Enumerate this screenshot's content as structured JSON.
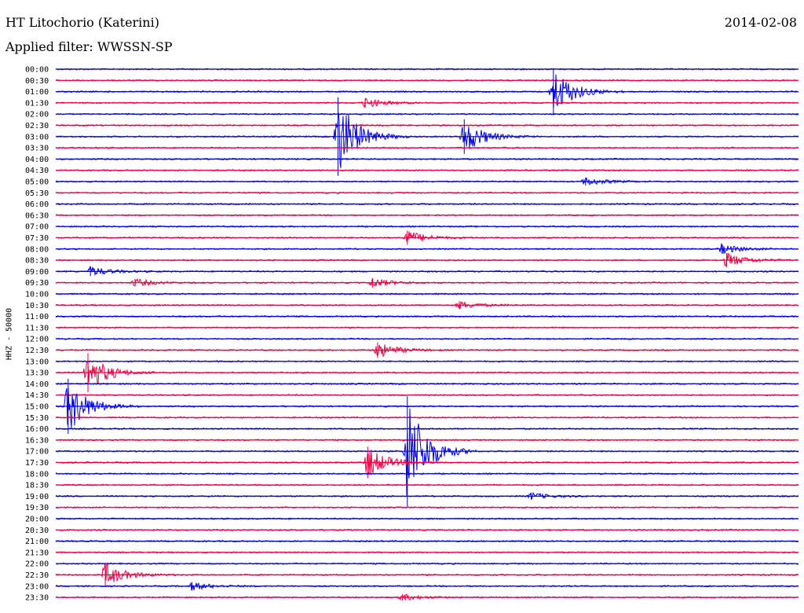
{
  "header": {
    "station": "HT Litochorio (Katerini)",
    "date": "2014-02-08",
    "filter": "Applied filter: WWSSN-SP",
    "channel": "HHZ - 50000"
  },
  "colors": {
    "trace_a": "#0000ee",
    "trace_b": "#ee0044",
    "background": "#ffffff",
    "text": "#000000"
  },
  "chart_data": {
    "type": "line",
    "title": "HT Litochorio (Katerini)",
    "subtitle": "Applied filter: WWSSN-SP",
    "ylabel": "HHZ - 50000",
    "row_labels": [
      "00:00",
      "00:30",
      "01:00",
      "01:30",
      "02:00",
      "02:30",
      "03:00",
      "03:30",
      "04:00",
      "04:30",
      "05:00",
      "05:30",
      "06:00",
      "06:30",
      "07:00",
      "07:30",
      "08:00",
      "08:30",
      "09:00",
      "09:30",
      "10:00",
      "10:30",
      "11:00",
      "11:30",
      "12:00",
      "12:30",
      "13:00",
      "13:30",
      "14:00",
      "14:30",
      "15:00",
      "15:30",
      "16:00",
      "16:30",
      "17:00",
      "17:30",
      "18:00",
      "18:30",
      "19:00",
      "19:30",
      "20:00",
      "20:30",
      "21:00",
      "21:30",
      "22:00",
      "22:30",
      "23:00",
      "23:30"
    ],
    "x_range_minutes": [
      0,
      30
    ],
    "trace_colors": [
      "#0000ee",
      "#ee0044"
    ],
    "events": [
      {
        "row": "01:00",
        "minute": 20.1,
        "amplitude": 3.0
      },
      {
        "row": "01:30",
        "minute": 12.5,
        "amplitude": 0.6
      },
      {
        "row": "03:00",
        "minute": 11.4,
        "amplitude": 5.0
      },
      {
        "row": "03:00",
        "minute": 16.5,
        "amplitude": 2.2
      },
      {
        "row": "05:00",
        "minute": 21.4,
        "amplitude": 0.5
      },
      {
        "row": "07:30",
        "minute": 14.2,
        "amplitude": 0.9
      },
      {
        "row": "08:00",
        "minute": 26.9,
        "amplitude": 0.6
      },
      {
        "row": "08:30",
        "minute": 27.1,
        "amplitude": 0.9
      },
      {
        "row": "09:00",
        "minute": 1.4,
        "amplitude": 0.6
      },
      {
        "row": "09:30",
        "minute": 3.2,
        "amplitude": 0.5
      },
      {
        "row": "09:30",
        "minute": 12.8,
        "amplitude": 0.6
      },
      {
        "row": "10:30",
        "minute": 16.3,
        "amplitude": 0.5
      },
      {
        "row": "12:30",
        "minute": 13.0,
        "amplitude": 1.0
      },
      {
        "row": "13:30",
        "minute": 1.3,
        "amplitude": 2.5
      },
      {
        "row": "15:00",
        "minute": 0.5,
        "amplitude": 3.5
      },
      {
        "row": "17:00",
        "minute": 14.2,
        "amplitude": 7.0
      },
      {
        "row": "17:30",
        "minute": 12.6,
        "amplitude": 2.0
      },
      {
        "row": "19:00",
        "minute": 19.2,
        "amplitude": 0.4
      },
      {
        "row": "22:30",
        "minute": 2.0,
        "amplitude": 1.5
      },
      {
        "row": "23:00",
        "minute": 5.5,
        "amplitude": 0.5
      },
      {
        "row": "23:30",
        "minute": 14.0,
        "amplitude": 0.4
      }
    ]
  }
}
